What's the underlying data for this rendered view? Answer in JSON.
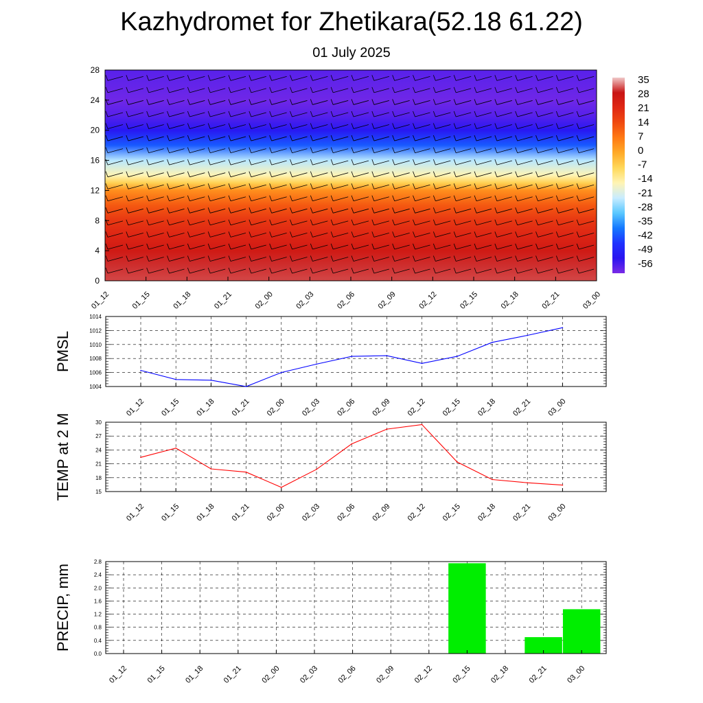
{
  "header": {
    "title": "Kazhydromet for Zhetikara(52.18 61.22)",
    "subtitle": "01 July 2025"
  },
  "chart_data": [
    {
      "type": "heatmap",
      "x_ticks": [
        "01_12",
        "01_15",
        "01_18",
        "01_21",
        "02_00",
        "02_03",
        "02_06",
        "02_09",
        "02_12",
        "02_15",
        "02_18",
        "02_21",
        "03_00"
      ],
      "y_ticks": [
        0,
        4,
        8,
        12,
        16,
        20,
        24,
        28
      ],
      "ylim": [
        0,
        28
      ],
      "colorbar_labels": [
        "35",
        "28",
        "21",
        "14",
        "7",
        "0",
        "-7",
        "-14",
        "-21",
        "-28",
        "-35",
        "-42",
        "-49",
        "-56"
      ],
      "colorbar_colors": [
        "#f0c8c8",
        "#c81414",
        "#e02814",
        "#f04a10",
        "#ff7a14",
        "#ffaa28",
        "#ffd85a",
        "#fff4b4",
        "#c8ecff",
        "#5ac8ff",
        "#1478ff",
        "#1e32ff",
        "#2a14f0",
        "#7a2ae6"
      ],
      "temperature_by_level": [
        [
          0,
          30
        ],
        [
          2,
          29
        ],
        [
          4,
          26
        ],
        [
          6,
          22
        ],
        [
          8,
          18
        ],
        [
          10,
          12
        ],
        [
          12,
          4
        ],
        [
          13,
          -6
        ],
        [
          14,
          -14
        ],
        [
          16,
          -22
        ],
        [
          18,
          -38
        ],
        [
          20,
          -48
        ],
        [
          22,
          -53
        ],
        [
          24,
          -55
        ],
        [
          26,
          -54
        ],
        [
          28,
          -53
        ]
      ],
      "wind_barbs": true
    },
    {
      "type": "line",
      "ylabel": "PMSL",
      "categories": [
        "01_12",
        "01_15",
        "01_18",
        "01_21",
        "02_00",
        "02_03",
        "02_06",
        "02_09",
        "02_12",
        "02_15",
        "02_18",
        "02_21",
        "03_00"
      ],
      "series": [
        {
          "values": [
            1006.3,
            1005.0,
            1004.9,
            1004.0,
            1006.0,
            1007.2,
            1008.3,
            1008.4,
            1007.3,
            1008.3,
            1010.3,
            1011.3,
            1012.4
          ]
        }
      ],
      "yticks": [
        "1004",
        "1006",
        "1008",
        "1010",
        "1012",
        "1014"
      ],
      "ylim": [
        1004,
        1014
      ],
      "grid": true,
      "color": "#0000ff"
    },
    {
      "type": "line",
      "ylabel": "TEMP at 2 M",
      "categories": [
        "01_12",
        "01_15",
        "01_18",
        "01_21",
        "02_00",
        "02_03",
        "02_06",
        "02_09",
        "02_12",
        "02_15",
        "02_18",
        "02_21",
        "03_00"
      ],
      "series": [
        {
          "values": [
            22.4,
            24.4,
            19.9,
            19.2,
            15.9,
            19.8,
            25.3,
            28.5,
            29.5,
            21.4,
            17.6,
            16.9,
            16.4
          ]
        }
      ],
      "yticks": [
        "15",
        "18",
        "21",
        "24",
        "27",
        "30"
      ],
      "ylim": [
        15,
        30
      ],
      "grid": true,
      "color": "#ff0000"
    },
    {
      "type": "bar",
      "ylabel": "PRECIP, mm",
      "categories": [
        "01_12",
        "01_15",
        "01_18",
        "01_21",
        "02_00",
        "02_03",
        "02_06",
        "02_09",
        "02_12",
        "02_15",
        "02_18",
        "02_21",
        "03_00"
      ],
      "values": [
        0,
        0,
        0,
        0,
        0,
        0,
        0,
        0,
        0,
        2.75,
        0,
        0.5,
        1.35
      ],
      "yticks": [
        "0.0",
        "0.4",
        "0.8",
        "1.2",
        "1.6",
        "2.0",
        "2.4",
        "2.8"
      ],
      "ylim": [
        0,
        2.8
      ],
      "grid": true,
      "color": "#00ee00"
    }
  ]
}
